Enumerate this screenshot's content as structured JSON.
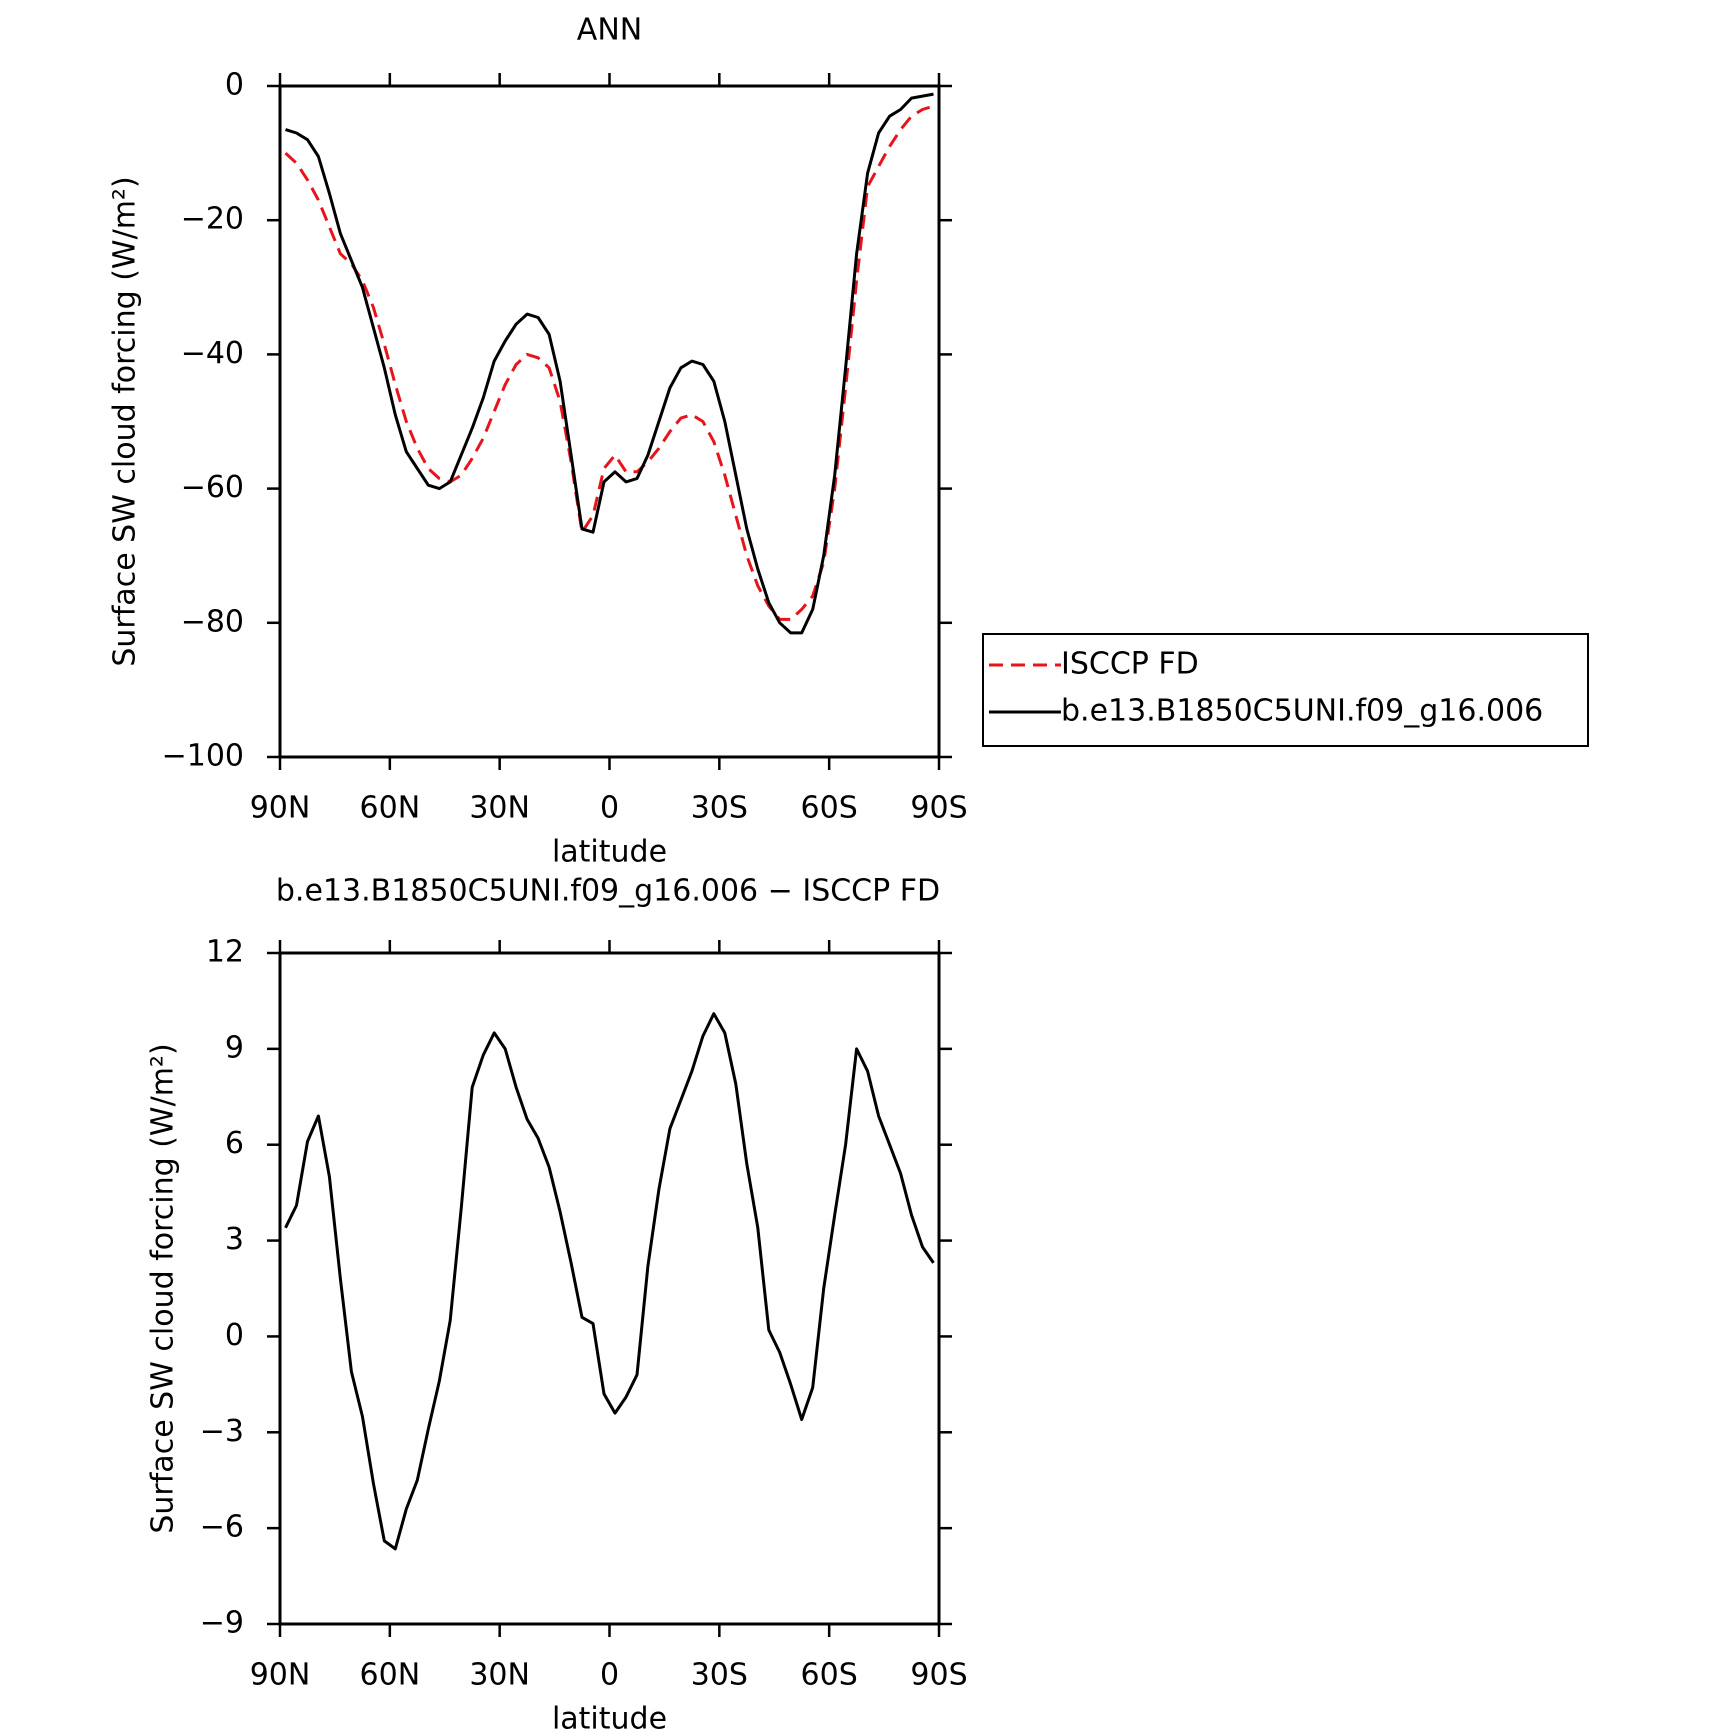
{
  "chart_data": [
    {
      "type": "line",
      "title": "ANN",
      "xlabel": "latitude",
      "ylabel": "Surface SW cloud forcing (W/m²)",
      "x": [
        88.5,
        85.5,
        82.5,
        79.5,
        76.5,
        73.5,
        70.5,
        67.5,
        64.5,
        61.5,
        58.5,
        55.5,
        52.5,
        49.5,
        46.5,
        43.5,
        40.5,
        37.5,
        34.5,
        31.5,
        28.5,
        25.5,
        22.5,
        19.5,
        16.5,
        13.5,
        10.5,
        7.5,
        4.5,
        1.5,
        -1.5,
        -4.5,
        -7.5,
        -10.5,
        -13.5,
        -16.5,
        -19.5,
        -22.5,
        -25.5,
        -28.5,
        -31.5,
        -34.5,
        -37.5,
        -40.5,
        -43.5,
        -46.5,
        -49.5,
        -52.5,
        -55.5,
        -58.5,
        -61.5,
        -64.5,
        -67.5,
        -70.5,
        -73.5,
        -76.5,
        -79.5,
        -82.5,
        -85.5,
        -88.5
      ],
      "series": [
        {
          "name": "ISCCP FD",
          "color": "#e8141b",
          "dashed": true,
          "values": [
            -10,
            -11.5,
            -14,
            -17,
            -21,
            -25,
            -26.5,
            -29,
            -33,
            -38.5,
            -44.5,
            -50,
            -54,
            -57,
            -58.5,
            -59,
            -58,
            -55.5,
            -52.5,
            -48.5,
            -44.5,
            -41.5,
            -40,
            -40.5,
            -42,
            -47,
            -56,
            -66.5,
            -64,
            -57,
            -55,
            -57.5,
            -57.5,
            -56,
            -54,
            -51.5,
            -49.5,
            -49,
            -50,
            -53,
            -58,
            -64,
            -70,
            -74.5,
            -77.5,
            -79.5,
            -79.5,
            -78,
            -76,
            -71,
            -60,
            -45,
            -29,
            -15,
            -12,
            -9,
            -6.5,
            -4.5,
            -3.5,
            -3
          ]
        },
        {
          "name": "b.e13.B1850C5UNI.f09_g16.006",
          "color": "#000000",
          "dashed": false,
          "values": [
            -6.5,
            -7,
            -8,
            -10.5,
            -16,
            -22,
            -26,
            -30,
            -36,
            -42,
            -49,
            -54.5,
            -57,
            -59.5,
            -60,
            -59,
            -55,
            -51,
            -46.5,
            -41,
            -38,
            -35.5,
            -34,
            -34.5,
            -37,
            -44,
            -55,
            -66,
            -66.5,
            -59,
            -57.5,
            -59,
            -58.5,
            -55,
            -50,
            -45,
            -42,
            -41,
            -41.5,
            -44,
            -50,
            -58,
            -66,
            -72,
            -77,
            -80,
            -81.5,
            -81.5,
            -78,
            -70,
            -58,
            -42,
            -25,
            -13,
            -7,
            -4.5,
            -3.5,
            -1.8,
            -1.5,
            -1.2
          ]
        }
      ],
      "legend": "outside-right",
      "xlim": [
        90,
        -90
      ],
      "xticks": [
        {
          "value": 90,
          "label": "90N"
        },
        {
          "value": 60,
          "label": "60N"
        },
        {
          "value": 30,
          "label": "30N"
        },
        0,
        {
          "value": -30,
          "label": "30S"
        },
        {
          "value": -60,
          "label": "60S"
        },
        {
          "value": -90,
          "label": "90S"
        }
      ],
      "ylim": [
        -100,
        0
      ],
      "yticks": [
        {
          "value": -100,
          "label": "−100"
        },
        {
          "value": -80,
          "label": "−80"
        },
        {
          "value": -60,
          "label": "−60"
        },
        {
          "value": -40,
          "label": "−40"
        },
        {
          "value": -20,
          "label": "−20"
        },
        0
      ]
    },
    {
      "type": "line",
      "title": "b.e13.B1850C5UNI.f09_g16.006 − ISCCP FD",
      "xlabel": "latitude",
      "ylabel": "Surface SW cloud forcing (W/m²)",
      "x": [
        88.5,
        85.5,
        82.5,
        79.5,
        76.5,
        73.5,
        70.5,
        67.5,
        64.5,
        61.5,
        58.5,
        55.5,
        52.5,
        49.5,
        46.5,
        43.5,
        40.5,
        37.5,
        34.5,
        31.5,
        28.5,
        25.5,
        22.5,
        19.5,
        16.5,
        13.5,
        10.5,
        7.5,
        4.5,
        1.5,
        -1.5,
        -4.5,
        -7.5,
        -10.5,
        -13.5,
        -16.5,
        -19.5,
        -22.5,
        -25.5,
        -28.5,
        -31.5,
        -34.5,
        -37.5,
        -40.5,
        -43.5,
        -46.5,
        -49.5,
        -52.5,
        -55.5,
        -58.5,
        -61.5,
        -64.5,
        -67.5,
        -70.5,
        -73.5,
        -76.5,
        -79.5,
        -82.5,
        -85.5,
        -88.5
      ],
      "series": [
        {
          "color": "#000000",
          "dashed": false,
          "values": [
            3.4,
            4.1,
            6.1,
            6.9,
            5.0,
            1.8,
            -1.1,
            -2.5,
            -4.6,
            -6.4,
            -6.65,
            -5.4,
            -4.5,
            -2.9,
            -1.4,
            0.5,
            4,
            7.8,
            8.8,
            9.5,
            9.0,
            7.8,
            6.8,
            6.2,
            5.3,
            3.9,
            2.3,
            0.6,
            0.4,
            -1.8,
            -2.4,
            -1.9,
            -1.2,
            2.2,
            4.6,
            6.5,
            7.4,
            8.3,
            9.4,
            10.1,
            9.5,
            7.9,
            5.4,
            3.4,
            0.2,
            -0.5,
            -1.5,
            -2.6,
            -1.6,
            1.5,
            3.8,
            6.0,
            9.0,
            8.3,
            6.9,
            6.0,
            5.1,
            3.8,
            2.8,
            2.3
          ]
        }
      ],
      "xlim": [
        90,
        -90
      ],
      "xticks": [
        {
          "value": 90,
          "label": "90N"
        },
        {
          "value": 60,
          "label": "60N"
        },
        {
          "value": 30,
          "label": "30N"
        },
        0,
        {
          "value": -30,
          "label": "30S"
        },
        {
          "value": -60,
          "label": "60S"
        },
        {
          "value": -90,
          "label": "90S"
        }
      ],
      "ylim": [
        -9,
        12
      ],
      "yticks": [
        {
          "value": -9,
          "label": "−9"
        },
        {
          "value": -6,
          "label": "−6"
        },
        {
          "value": -3,
          "label": "−3"
        },
        0,
        3,
        6,
        9,
        12
      ]
    }
  ]
}
